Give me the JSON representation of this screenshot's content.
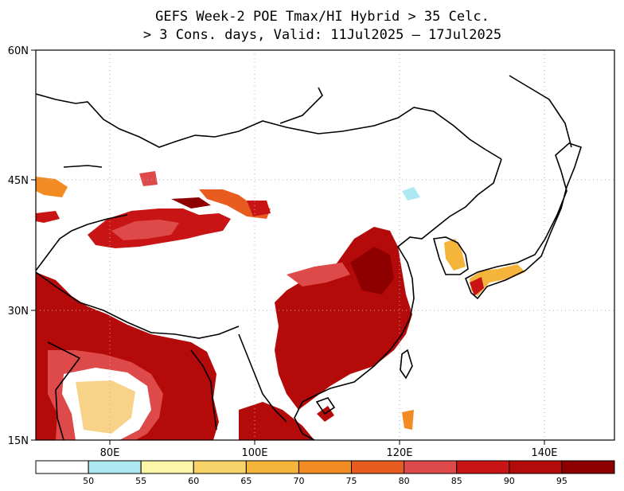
{
  "map": {
    "title_line1": "GEFS Week-2 POE Tmax/HI Hybrid > 35 Celc.",
    "title_line2": "> 3 Cons. days, Valid: 11Jul2025 – 17Jul2025",
    "lat_labels": [
      "60N",
      "45N",
      "30N",
      "15N"
    ],
    "lon_labels": [
      "80E",
      "100E",
      "120E",
      "140E"
    ],
    "colorbar": {
      "labels": [
        "50",
        "55",
        "60",
        "65",
        "70",
        "75",
        "80",
        "85",
        "90",
        "95"
      ],
      "colors": [
        "#ffffff",
        "#aee8f2",
        "#fdf5a8",
        "#f8d36a",
        "#f5b43a",
        "#f18b22",
        "#e95c20",
        "#de4a4a",
        "#c81414",
        "#b50a0a",
        "#8e0000"
      ]
    },
    "land_outline_color": "#000000",
    "grid_color": "#b0b0b0"
  }
}
